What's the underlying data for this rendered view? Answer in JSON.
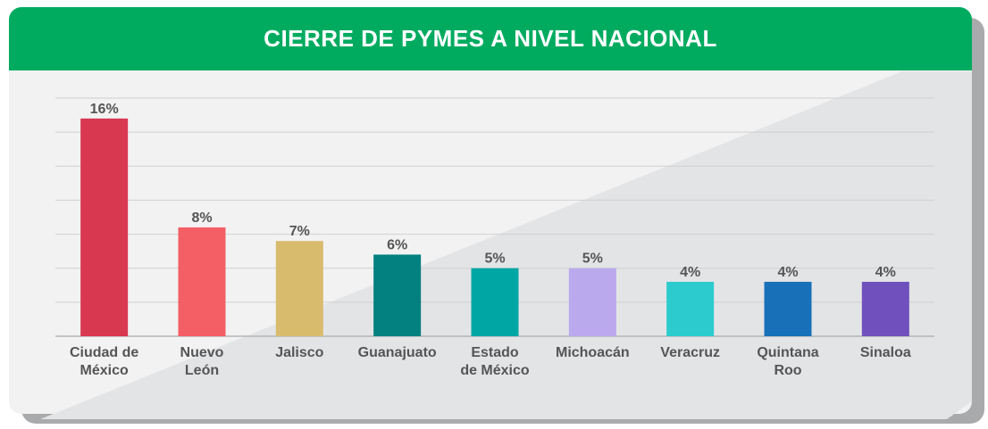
{
  "header": {
    "title": "CIERRE DE PYMES A NIVEL NACIONAL"
  },
  "chart_data": {
    "type": "bar",
    "title": "CIERRE DE PYMES A NIVEL NACIONAL",
    "categories": [
      [
        "Ciudad de",
        "México"
      ],
      [
        "Nuevo",
        "León"
      ],
      [
        "Jalisco"
      ],
      [
        "Guanajuato"
      ],
      [
        "Estado",
        "de México"
      ],
      [
        "Michoacán"
      ],
      [
        "Veracruz"
      ],
      [
        "Quintana",
        "Roo"
      ],
      [
        "Sinaloa"
      ]
    ],
    "values": [
      16,
      8,
      7,
      6,
      5,
      5,
      4,
      4,
      4
    ],
    "value_labels": [
      "16%",
      "8%",
      "7%",
      "6%",
      "5%",
      "5%",
      "4%",
      "4%",
      "4%"
    ],
    "colors": [
      "#d93851",
      "#f45e65",
      "#d9bb6e",
      "#038080",
      "#00a6a4",
      "#bba9ed",
      "#2ccbce",
      "#1871b8",
      "#6f50bc"
    ],
    "ylim": [
      0,
      17.5
    ],
    "grid": true,
    "legend": "none",
    "xlabel": "",
    "ylabel": ""
  }
}
